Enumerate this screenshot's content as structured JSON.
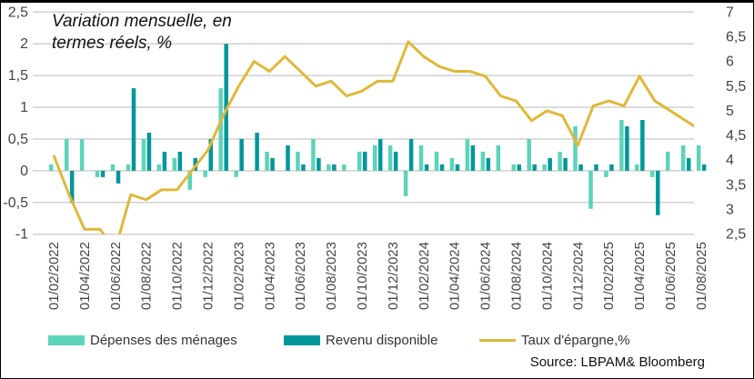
{
  "chart_data": {
    "type": "bar+line",
    "title": "Variation mensuelle, en termes réels, %",
    "source": "Source: LBPAM& Bloomberg",
    "dates": [
      "01/02/2022",
      "01/03/2022",
      "01/04/2022",
      "01/05/2022",
      "01/06/2022",
      "01/07/2022",
      "01/08/2022",
      "01/09/2022",
      "01/10/2022",
      "01/11/2022",
      "01/12/2022",
      "01/01/2023",
      "01/02/2023",
      "01/03/2023",
      "01/04/2023",
      "01/05/2023",
      "01/06/2023",
      "01/07/2023",
      "01/08/2023",
      "01/09/2023",
      "01/10/2023",
      "01/11/2023",
      "01/12/2023",
      "01/01/2024",
      "01/02/2024",
      "01/03/2024",
      "01/04/2024",
      "01/05/2024",
      "01/06/2024",
      "01/07/2024",
      "01/08/2024",
      "01/09/2024",
      "01/10/2024",
      "01/11/2024",
      "01/12/2024",
      "01/01/2025",
      "01/02/2025",
      "01/03/2025",
      "01/04/2025",
      "01/05/2025",
      "01/06/2025",
      "01/07/2025",
      "01/08/2025"
    ],
    "x_tick_labels": [
      "01/02/2022",
      "01/04/2022",
      "01/06/2022",
      "01/08/2022",
      "01/10/2022",
      "01/12/2022",
      "01/02/2023",
      "01/04/2023",
      "01/06/2023",
      "01/08/2023",
      "01/10/2023",
      "01/12/2023",
      "01/02/2024",
      "01/04/2024",
      "01/06/2024",
      "01/08/2024",
      "01/10/2024",
      "01/12/2024",
      "01/02/2025",
      "01/04/2025",
      "01/06/2025",
      "01/08/2025"
    ],
    "y_left": {
      "range": [
        -1,
        2.5
      ],
      "ticks": [
        "2,5",
        "2",
        "1,5",
        "1",
        "0,5",
        "0",
        "-0,5",
        "-1"
      ],
      "values": [
        2.5,
        2,
        1.5,
        1,
        0.5,
        0,
        -0.5,
        -1
      ]
    },
    "y_right": {
      "range": [
        2.5,
        7
      ],
      "ticks": [
        "7",
        "6,5",
        "6",
        "5,5",
        "5",
        "4,5",
        "4",
        "3,5",
        "3",
        "2,5"
      ],
      "values": [
        7,
        6.5,
        6,
        5.5,
        5,
        4.5,
        4,
        3.5,
        3,
        2.5
      ]
    },
    "grid": true,
    "legend_position": "bottom",
    "series": [
      {
        "name": "Dépenses des ménages",
        "type": "bar",
        "axis": "left",
        "color": "#5dd3b9",
        "values": [
          0.1,
          0.5,
          0.5,
          -0.1,
          0.1,
          0.1,
          0.5,
          0.1,
          0.2,
          -0.3,
          -0.1,
          1.3,
          -0.1,
          0,
          0.3,
          0,
          0.3,
          0.5,
          0.1,
          0.1,
          0.3,
          0.4,
          0.4,
          -0.4,
          0.4,
          0.3,
          0.2,
          0.5,
          0.3,
          0.4,
          0.1,
          0.5,
          0.1,
          0.3,
          0.7,
          -0.6,
          -0.1,
          0.8,
          0.1,
          -0.1,
          0.3,
          0.4,
          0.4
        ]
      },
      {
        "name": "Revenu disponible",
        "type": "bar",
        "axis": "left",
        "color": "#00979a",
        "values": [
          0,
          -0.5,
          0,
          -0.1,
          -0.2,
          1.3,
          0.6,
          0.3,
          0.3,
          0.2,
          0.5,
          2.0,
          0.5,
          0.6,
          0.2,
          0.4,
          0.1,
          0.2,
          0.1,
          0,
          0.3,
          0.5,
          0.3,
          0.5,
          0.1,
          0.1,
          0.1,
          0.4,
          0.2,
          0,
          0.1,
          0.1,
          0.2,
          0.2,
          0.1,
          0.1,
          0.1,
          0.7,
          0.8,
          -0.7,
          0,
          0.2,
          0.1
        ]
      },
      {
        "name": "Taux d'épargne,%",
        "type": "line",
        "axis": "right",
        "color": "#e0b83a",
        "values": [
          4.1,
          3.3,
          2.6,
          2.6,
          2.2,
          3.3,
          3.2,
          3.4,
          3.4,
          3.8,
          4.2,
          4.9,
          5.5,
          6.0,
          5.8,
          6.1,
          5.8,
          5.5,
          5.6,
          5.3,
          5.4,
          5.6,
          5.6,
          6.4,
          6.1,
          5.9,
          5.8,
          5.8,
          5.7,
          5.3,
          5.2,
          4.8,
          5.0,
          4.9,
          4.3,
          5.1,
          5.2,
          5.1,
          5.7,
          5.2,
          5.0,
          4.8,
          4.6
        ]
      }
    ]
  }
}
